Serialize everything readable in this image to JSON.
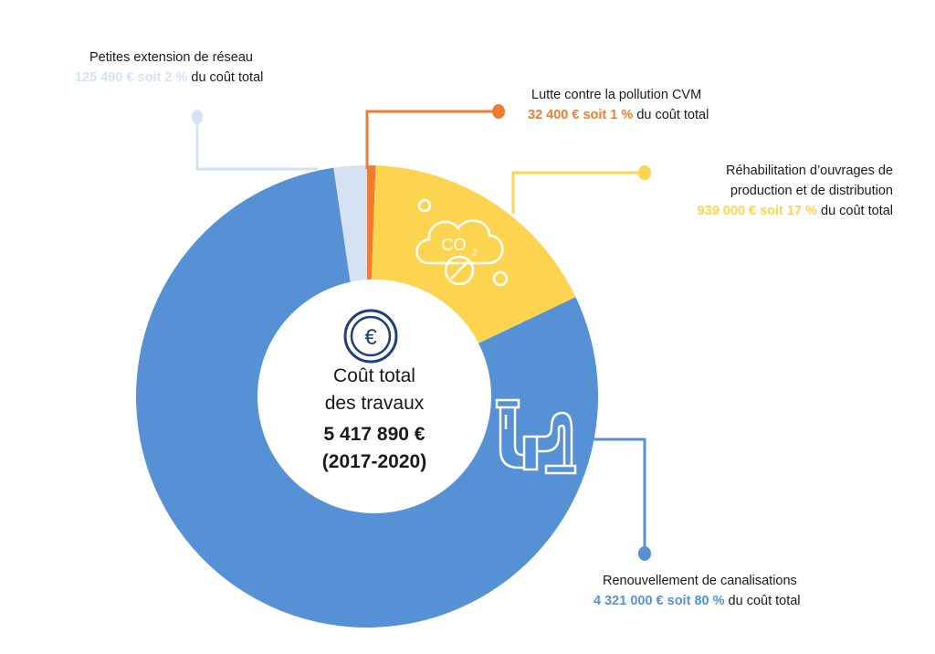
{
  "chart_data": {
    "type": "pie",
    "title": "",
    "center": {
      "line1": "Coût total",
      "line2": "des travaux",
      "amount": "5 417 890 €",
      "period": "(2017-2020)",
      "icon": "euro-icon"
    },
    "slices": [
      {
        "key": "cvm",
        "title": "Lutte contre la pollution CVM",
        "amount_label": "32 400 €",
        "pct_label": "soit 1 %",
        "suffix": "du coût total",
        "value": 32400,
        "percent": 1,
        "color": "#EE7D31"
      },
      {
        "key": "rehab",
        "title_line1": "Réhabilitation d’ouvrages de",
        "title_line2": "production et de distribution",
        "amount_label": "939 000 €",
        "pct_label": "soit 17 %",
        "suffix": "du coût total",
        "value": 939000,
        "percent": 17,
        "color": "#FDD44F",
        "icon": "co2-cloud-icon"
      },
      {
        "key": "renouv",
        "title": "Renouvellement de canalisations",
        "amount_label": "4 321 000 €",
        "pct_label": "soit 80 %",
        "suffix": "du coût total",
        "value": 4321000,
        "percent": 80,
        "color": "#5591D4",
        "icon": "pipe-icon"
      },
      {
        "key": "ext",
        "title": "Petites extension de réseau",
        "amount_label": "125 490 €",
        "pct_label": "soit 2 %",
        "suffix": "du coût total",
        "value": 125490,
        "percent": 2,
        "color": "#D6E2F3"
      }
    ]
  }
}
